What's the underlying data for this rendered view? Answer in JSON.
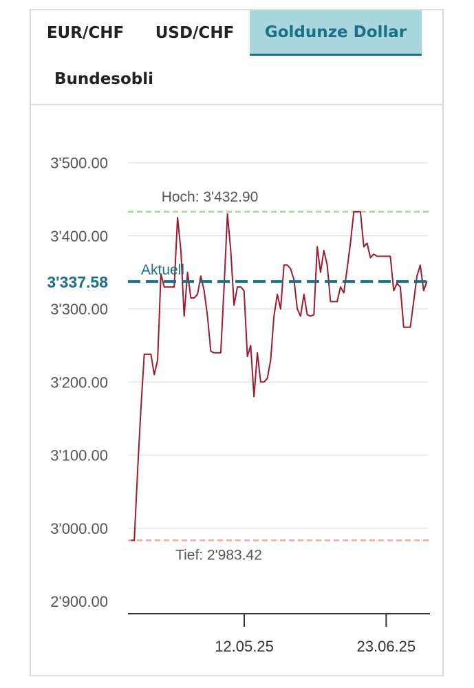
{
  "tabs": [
    {
      "label": "EUR/CHF",
      "active": false
    },
    {
      "label": "USD/CHF",
      "active": false
    },
    {
      "label": "Goldunze Dollar",
      "active": true
    },
    {
      "label": "Bundesobli",
      "active": false
    }
  ],
  "colors": {
    "accent": "#1b6f86",
    "tab_active_bg": "#a9d6df",
    "series": "#9b1b30",
    "high_line": "#a8d8a0",
    "low_line": "#f0a8a8",
    "grid": "#e6e6e6"
  },
  "chart_data": {
    "type": "line",
    "y_ticks": [
      "3'500.00",
      "3'400.00",
      "3'300.00",
      "3'200.00",
      "3'100.00",
      "3'000.00",
      "2'900.00"
    ],
    "y_tick_values": [
      3500,
      3400,
      3300,
      3200,
      3100,
      3000,
      2900
    ],
    "ylim": [
      2880,
      3560
    ],
    "xlim": [
      0,
      100
    ],
    "x_ticks": [
      {
        "label": "12.05.25",
        "x": 38.5
      },
      {
        "label": "23.06.25",
        "x": 85.5
      }
    ],
    "high": {
      "label": "Hoch: 3'432.90",
      "value": 3432.9
    },
    "low": {
      "label": "Tief: 2'983.42",
      "value": 2983.42
    },
    "current": {
      "label": "Aktuell",
      "value_label": "3'337.58",
      "value": 3337.58
    },
    "grid": true,
    "series": [
      {
        "values": [
          2983.42,
          2983.4,
          3080,
          3165,
          3238,
          3238,
          3238,
          3210,
          3230,
          3348,
          3330,
          3330,
          3330,
          3330,
          3425,
          3380,
          3290,
          3350,
          3315,
          3315,
          3320,
          3345,
          3325,
          3290,
          3242,
          3240,
          3240,
          3240,
          3330,
          3430,
          3380,
          3305,
          3330,
          3330,
          3325,
          3235,
          3250,
          3180,
          3240,
          3200,
          3200,
          3205,
          3230,
          3290,
          3320,
          3300,
          3360,
          3360,
          3355,
          3340,
          3300,
          3290,
          3320,
          3292,
          3290,
          3292,
          3385,
          3350,
          3380,
          3360,
          3310,
          3310,
          3310,
          3330,
          3322,
          3355,
          3390,
          3432.9,
          3432.9,
          3432.9,
          3385,
          3390,
          3370,
          3375,
          3372,
          3372,
          3372,
          3372,
          3372,
          3325,
          3335,
          3330,
          3275,
          3275,
          3275,
          3310,
          3345,
          3360,
          3325,
          3337.58
        ]
      }
    ]
  }
}
